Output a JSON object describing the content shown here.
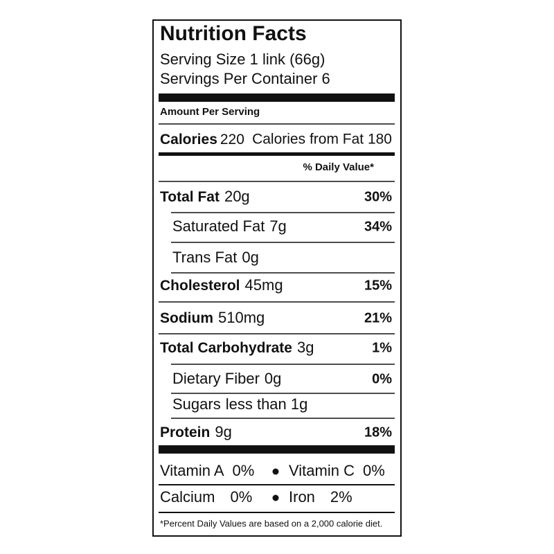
{
  "title": "Nutrition Facts",
  "serving_size": "Serving Size 1 link (66g)",
  "servings_per_container": "Servings Per Container 6",
  "amount_per_serving": "Amount Per Serving",
  "calories": {
    "label": "Calories",
    "value": "220"
  },
  "calories_from_fat": "Calories from Fat 180",
  "daily_value_header": "% Daily Value*",
  "nutrients": [
    {
      "name": "Total Fat",
      "amount": "20g",
      "dv": "30%",
      "bold": true,
      "indent": false
    },
    {
      "name": "Saturated Fat",
      "amount": "7g",
      "dv": "34%",
      "bold": false,
      "indent": true
    },
    {
      "name": "Trans Fat",
      "amount": "0g",
      "bold": false,
      "indent": true
    },
    {
      "name": "Cholesterol",
      "amount": "45mg",
      "dv": "15%",
      "bold": true,
      "indent": false
    },
    {
      "name": "Sodium",
      "amount": "510mg",
      "dv": "21%",
      "bold": true,
      "indent": false
    },
    {
      "name": "Total Carbohydrate",
      "amount": "3g",
      "dv": "1%",
      "bold": true,
      "indent": false
    },
    {
      "name": "Dietary Fiber",
      "amount": "0g",
      "dv": "0%",
      "bold": false,
      "indent": true
    },
    {
      "name": "Sugars",
      "amount": "less than 1g",
      "bold": false,
      "indent": true
    },
    {
      "name": "Protein",
      "amount": "9g",
      "dv": "18%",
      "bold": true,
      "indent": false
    }
  ],
  "vitamins": [
    [
      {
        "name": "Vitamin A",
        "value": "0%"
      },
      {
        "name": "Vitamin C",
        "value": "0%"
      }
    ],
    [
      {
        "name": "Calcium",
        "value": "0%"
      },
      {
        "name": "Iron",
        "value": "2%"
      }
    ]
  ],
  "footnote": "*Percent Daily Values are based on a 2,000 calorie diet."
}
